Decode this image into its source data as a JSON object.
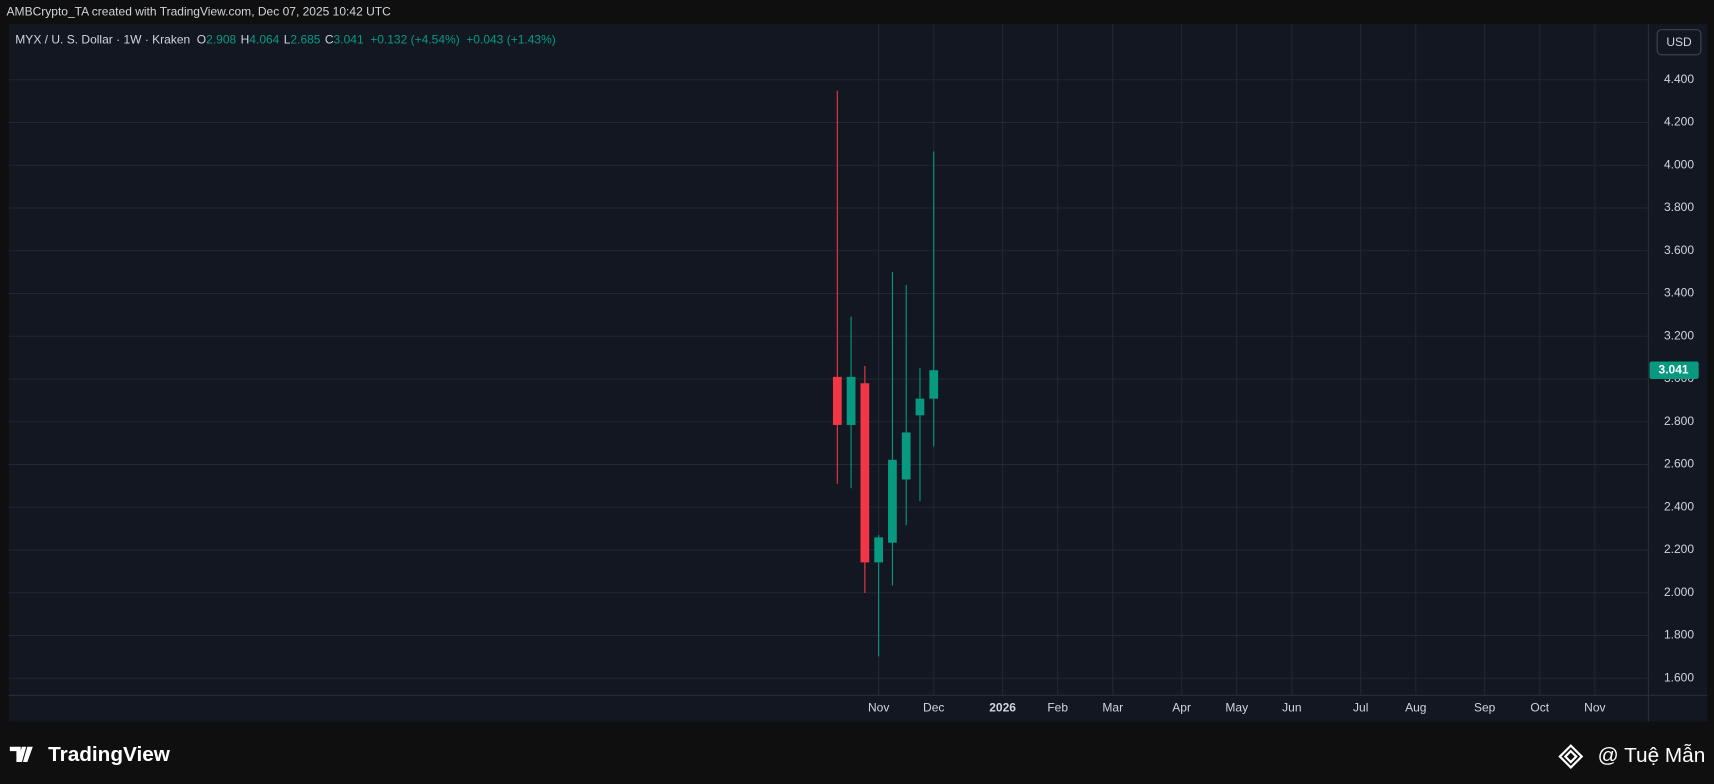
{
  "chart_data": {
    "type": "candlestick",
    "header": "AMBCrypto_TA created with TradingView.com, Dec 07, 2025 10:42 UTC",
    "symbol": "MYX / U. S. Dollar · 1W · Kraken",
    "legend_change": [
      "+0.132 (+4.54%)",
      "+0.043 (+1.43%)"
    ],
    "currency": "USD",
    "brand": "TradingView",
    "watermark": "@ Tuệ Mẫn",
    "up_color": "#089981",
    "down_color": "#f23645",
    "categories": [
      null,
      null,
      null,
      "Nov",
      null,
      null,
      null,
      "Dec",
      null,
      null,
      null,
      null,
      "2026",
      null,
      null,
      null,
      "Feb",
      null,
      null,
      null,
      "Mar",
      null,
      null,
      null,
      null,
      "Apr",
      null,
      null,
      null,
      "May",
      null,
      null,
      null,
      "Jun",
      null,
      null,
      null,
      null,
      "Jul",
      null,
      null,
      null,
      "Aug",
      null,
      null,
      null,
      null,
      "Sep",
      null,
      null,
      null,
      "Oct",
      null,
      null,
      null,
      "Nov",
      null,
      null
    ],
    "open": [
      3.01,
      2.785,
      2.98,
      2.142,
      2.234,
      2.53,
      2.83,
      2.908,
      null,
      null,
      null,
      null,
      null,
      null,
      null,
      null,
      null,
      null,
      null,
      null,
      null,
      null,
      null,
      null,
      null,
      null,
      null,
      null,
      null,
      null,
      null,
      null,
      null,
      null,
      null,
      null,
      null,
      null,
      null,
      null,
      null,
      null,
      null,
      null,
      null,
      null,
      null,
      null,
      null,
      null,
      null,
      null,
      null,
      null,
      null,
      null,
      null,
      null
    ],
    "high": [
      4.349,
      3.291,
      3.061,
      2.27,
      3.501,
      3.44,
      3.05,
      4.064,
      null,
      null,
      null,
      null,
      null,
      null,
      null,
      null,
      null,
      null,
      null,
      null,
      null,
      null,
      null,
      null,
      null,
      null,
      null,
      null,
      null,
      null,
      null,
      null,
      null,
      null,
      null,
      null,
      null,
      null,
      null,
      null,
      null,
      null,
      null,
      null,
      null,
      null,
      null,
      null,
      null,
      null,
      null,
      null,
      null,
      null,
      null,
      null,
      null,
      null
    ],
    "low": [
      2.51,
      2.489,
      1.999,
      1.702,
      2.034,
      2.315,
      2.428,
      2.685,
      null,
      null,
      null,
      null,
      null,
      null,
      null,
      null,
      null,
      null,
      null,
      null,
      null,
      null,
      null,
      null,
      null,
      null,
      null,
      null,
      null,
      null,
      null,
      null,
      null,
      null,
      null,
      null,
      null,
      null,
      null,
      null,
      null,
      null,
      null,
      null,
      null,
      null,
      null,
      null,
      null,
      null,
      null,
      null,
      null,
      null,
      null,
      null,
      null,
      null
    ],
    "close": [
      2.785,
      3.01,
      2.142,
      2.259,
      2.622,
      2.75,
      2.908,
      3.041,
      null,
      null,
      null,
      null,
      null,
      null,
      null,
      null,
      null,
      null,
      null,
      null,
      null,
      null,
      null,
      null,
      null,
      null,
      null,
      null,
      null,
      null,
      null,
      null,
      null,
      null,
      null,
      null,
      null,
      null,
      null,
      null,
      null,
      null,
      null,
      null,
      null,
      null,
      null,
      null,
      null,
      null,
      null,
      null,
      null,
      null,
      null,
      null,
      null,
      null
    ],
    "ylim": [
      1.52,
      4.66
    ],
    "yticks": [
      {
        "value": 1.6,
        "label": "1.600"
      },
      {
        "value": 1.8,
        "label": "1.800"
      },
      {
        "value": 2.0,
        "label": "2.000"
      },
      {
        "value": 2.2,
        "label": "2.200"
      },
      {
        "value": 2.4,
        "label": "2.400"
      },
      {
        "value": 2.6,
        "label": "2.600"
      },
      {
        "value": 2.8,
        "label": "2.800"
      },
      {
        "value": 3.0,
        "label": "3.000"
      },
      {
        "value": 3.2,
        "label": "3.200"
      },
      {
        "value": 3.4,
        "label": "3.400"
      },
      {
        "value": 3.6,
        "label": "3.600"
      },
      {
        "value": 3.8,
        "label": "3.800"
      },
      {
        "value": 4.0,
        "label": "4.000"
      },
      {
        "value": 4.2,
        "label": "4.200"
      },
      {
        "value": 4.4,
        "label": "4.400"
      }
    ],
    "grid": true
  }
}
